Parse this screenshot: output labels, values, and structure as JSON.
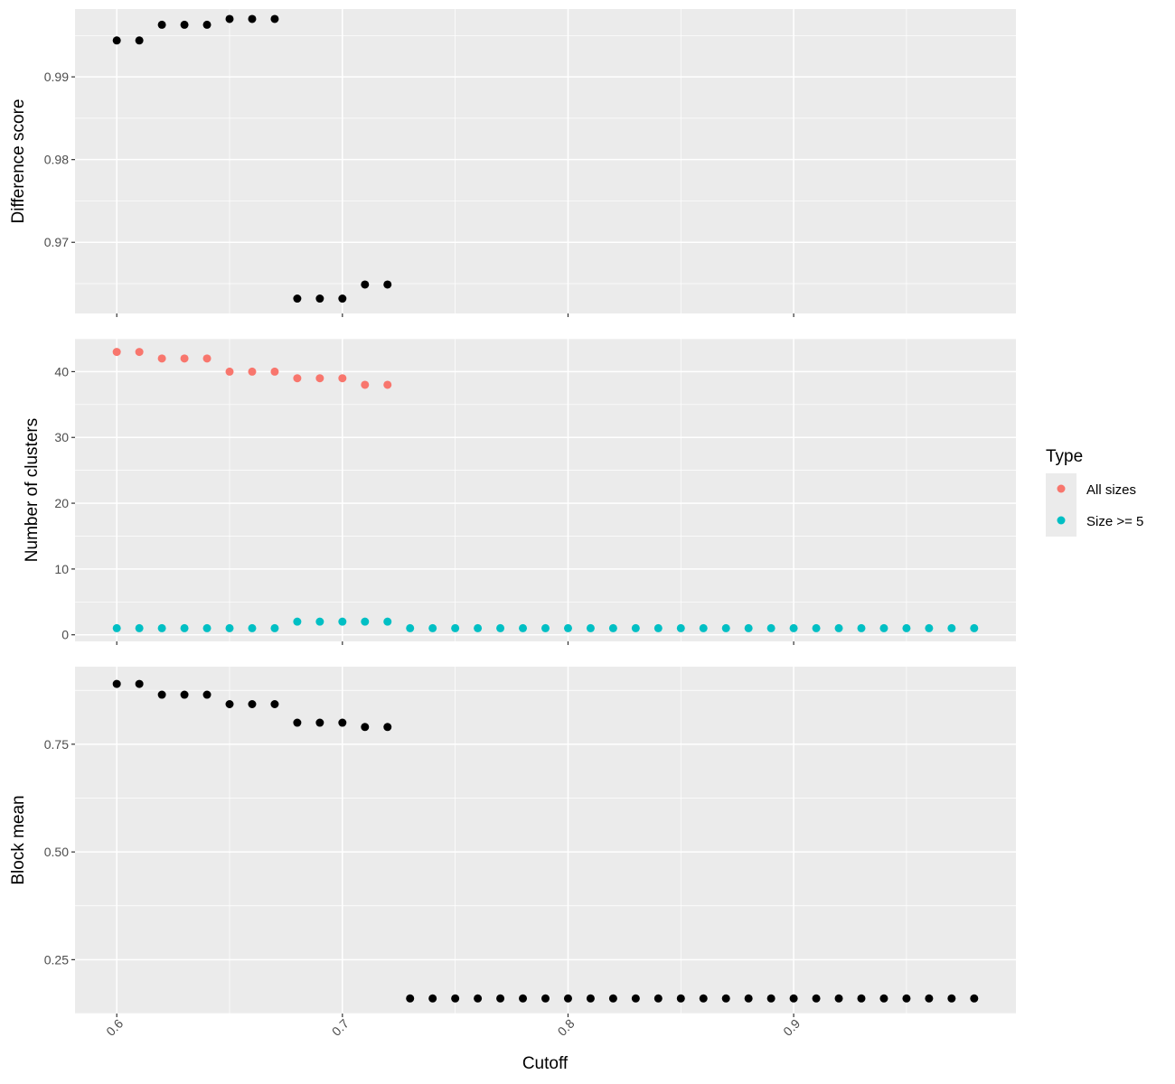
{
  "chart_data": {
    "type": "scatter",
    "xlabel": "Cutoff",
    "x_ticks": [
      "0.6",
      "0.7",
      "0.8",
      "0.9"
    ],
    "x_tick_values": [
      0.6,
      0.7,
      0.8,
      0.9
    ],
    "xlim": [
      0.5815,
      0.9985
    ],
    "x": [
      0.6,
      0.61,
      0.62,
      0.63,
      0.64,
      0.65,
      0.66,
      0.67,
      0.68,
      0.69,
      0.7,
      0.71,
      0.72,
      0.73,
      0.74,
      0.75,
      0.76,
      0.77,
      0.78,
      0.79,
      0.8,
      0.81,
      0.82,
      0.83,
      0.84,
      0.85,
      0.86,
      0.87,
      0.88,
      0.89,
      0.9,
      0.91,
      0.92,
      0.93,
      0.94,
      0.95,
      0.96,
      0.97,
      0.98
    ],
    "panels": [
      {
        "ylabel": "Difference score",
        "y_ticks": [
          "0.97",
          "0.98",
          "0.99"
        ],
        "y_tick_values": [
          0.97,
          0.98,
          0.99
        ],
        "ylim": [
          0.9614,
          0.9982
        ],
        "series": [
          {
            "color": "#000000",
            "x": [
              0.6,
              0.61,
              0.62,
              0.63,
              0.64,
              0.65,
              0.66,
              0.67,
              0.68,
              0.69,
              0.7,
              0.71,
              0.72
            ],
            "values": [
              0.9944,
              0.9944,
              0.9963,
              0.9963,
              0.9963,
              0.997,
              0.997,
              0.997,
              0.9632,
              0.9632,
              0.9632,
              0.9649,
              0.9649
            ]
          }
        ]
      },
      {
        "ylabel": "Number of clusters",
        "y_ticks": [
          "0",
          "10",
          "20",
          "30",
          "40"
        ],
        "y_tick_values": [
          0,
          10,
          20,
          30,
          40
        ],
        "ylim": [
          -1,
          45
        ],
        "series": [
          {
            "name": "All sizes",
            "color": "#F8766D",
            "x": [
              0.6,
              0.61,
              0.62,
              0.63,
              0.64,
              0.65,
              0.66,
              0.67,
              0.68,
              0.69,
              0.7,
              0.71,
              0.72
            ],
            "values": [
              43,
              43,
              42,
              42,
              42,
              40,
              40,
              40,
              39,
              39,
              39,
              38,
              38
            ]
          },
          {
            "name": "Size >= 5",
            "color": "#00BFC4",
            "x": [
              0.6,
              0.61,
              0.62,
              0.63,
              0.64,
              0.65,
              0.66,
              0.67,
              0.68,
              0.69,
              0.7,
              0.71,
              0.72,
              0.73,
              0.74,
              0.75,
              0.76,
              0.77,
              0.78,
              0.79,
              0.8,
              0.81,
              0.82,
              0.83,
              0.84,
              0.85,
              0.86,
              0.87,
              0.88,
              0.89,
              0.9,
              0.91,
              0.92,
              0.93,
              0.94,
              0.95,
              0.96,
              0.97,
              0.98
            ],
            "values": [
              1,
              1,
              1,
              1,
              1,
              1,
              1,
              1,
              2,
              2,
              2,
              2,
              2,
              1,
              1,
              1,
              1,
              1,
              1,
              1,
              1,
              1,
              1,
              1,
              1,
              1,
              1,
              1,
              1,
              1,
              1,
              1,
              1,
              1,
              1,
              1,
              1,
              1,
              1
            ]
          }
        ]
      },
      {
        "ylabel": "Block mean",
        "y_ticks": [
          "0.25",
          "0.50",
          "0.75"
        ],
        "y_tick_values": [
          0.25,
          0.5,
          0.75
        ],
        "ylim": [
          0.125,
          0.93
        ],
        "series": [
          {
            "color": "#000000",
            "x": [
              0.6,
              0.61,
              0.62,
              0.63,
              0.64,
              0.65,
              0.66,
              0.67,
              0.68,
              0.69,
              0.7,
              0.71,
              0.72,
              0.73,
              0.74,
              0.75,
              0.76,
              0.77,
              0.78,
              0.79,
              0.8,
              0.81,
              0.82,
              0.83,
              0.84,
              0.85,
              0.86,
              0.87,
              0.88,
              0.89,
              0.9,
              0.91,
              0.92,
              0.93,
              0.94,
              0.95,
              0.96,
              0.97,
              0.98
            ],
            "values": [
              0.89,
              0.89,
              0.865,
              0.865,
              0.865,
              0.843,
              0.843,
              0.843,
              0.8,
              0.8,
              0.8,
              0.79,
              0.79,
              0.16,
              0.16,
              0.16,
              0.16,
              0.16,
              0.16,
              0.16,
              0.16,
              0.16,
              0.16,
              0.16,
              0.16,
              0.16,
              0.16,
              0.16,
              0.16,
              0.16,
              0.16,
              0.16,
              0.16,
              0.16,
              0.16,
              0.16,
              0.16,
              0.16,
              0.16
            ]
          }
        ]
      }
    ],
    "legend": {
      "title": "Type",
      "position": "right",
      "entries": [
        {
          "label": "All sizes",
          "color": "#F8766D"
        },
        {
          "label": "Size >= 5",
          "color": "#00BFC4"
        }
      ]
    },
    "grid": true,
    "panel_background": "#EBEBEB"
  }
}
